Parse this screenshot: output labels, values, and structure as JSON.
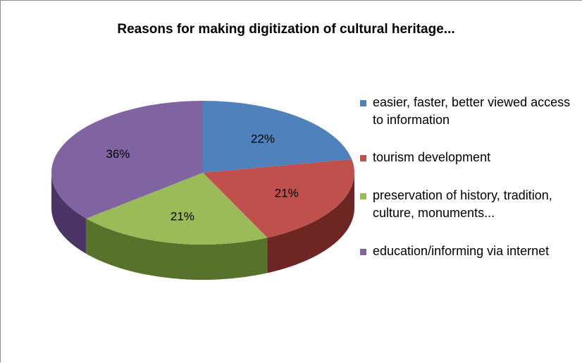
{
  "chart_data": {
    "type": "pie",
    "title": "Reasons for making digitization of cultural heritage...",
    "slices": [
      {
        "label": "easier, faster,  better viewed access to information",
        "value": 22,
        "display": "22%",
        "color": "#4F81BD",
        "side": "#2E4E78"
      },
      {
        "label": "tourism development",
        "value": 21,
        "display": "21%",
        "color": "#C0504D",
        "side": "#6E2624"
      },
      {
        "label": "preservation of history, tradition, culture, monuments...",
        "value": 21,
        "display": "21%",
        "color": "#9BBB59",
        "side": "#56722B"
      },
      {
        "label": "education/informing via internet",
        "value": 36,
        "display": "36%",
        "color": "#8064A2",
        "side": "#4B3566"
      }
    ],
    "legend_position": "right",
    "style": "3D"
  }
}
